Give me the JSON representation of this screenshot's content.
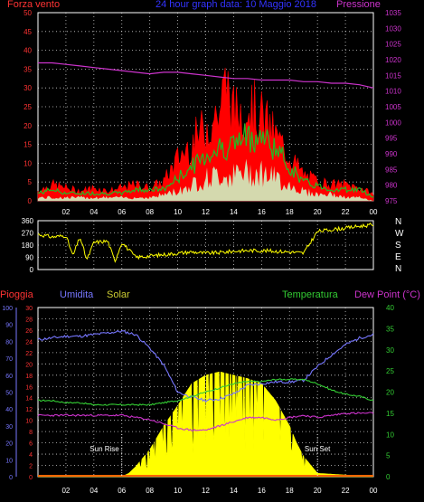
{
  "header": {
    "left_label": "Forza vento",
    "title": "24 hour graph data: 10 Maggio 2018",
    "right_label": "Pressione"
  },
  "compass_labels": [
    "N",
    "W",
    "S",
    "E",
    "N"
  ],
  "bottom_header": {
    "pioggia": "Pioggia",
    "umidita": "Umidita",
    "solar": "Solar",
    "temperatura": "Temperatura",
    "dew_point": "Dew Point (°C)"
  },
  "annotations": {
    "sunrise": "Sun Rise",
    "sunset": "Sun Set"
  },
  "colors": {
    "wind_gust": "#ff0000",
    "wind_avg": "#22bb22",
    "wind_min": "#ccffcc",
    "pressure": "#cc33cc",
    "direction": "#ffff00",
    "humidity": "#7777ff",
    "solar": "#ffff00",
    "temperature": "#33cc33",
    "dew_point": "#cc33cc",
    "rain": "#ff6600",
    "left_axis": "#ff3333",
    "pressure_axis": "#cc33cc",
    "humidity_axis": "#7777ff",
    "temp_axis": "#33cc33",
    "compass": "#ffffff",
    "grid": "#ffffff"
  },
  "chart_data": [
    {
      "type": "line",
      "name": "wind-pressure",
      "x_ticks": [
        "02",
        "04",
        "06",
        "08",
        "10",
        "12",
        "14",
        "16",
        "18",
        "20",
        "22",
        "00"
      ],
      "x_range": [
        0,
        24
      ],
      "y_left_ticks": [
        0,
        5,
        10,
        15,
        20,
        25,
        30,
        35,
        40,
        45,
        50
      ],
      "y_left_range": [
        0,
        50
      ],
      "y_right_ticks": [
        975,
        980,
        985,
        990,
        995,
        1000,
        1005,
        1010,
        1015,
        1020,
        1025,
        1030,
        1035
      ],
      "y_right_range": [
        975,
        1035
      ],
      "series": [
        {
          "key": "pressure",
          "axis": "right",
          "x": [
            0,
            1,
            2,
            3,
            4,
            5,
            6,
            7,
            8,
            9,
            10,
            11,
            12,
            13,
            14,
            15,
            16,
            17,
            18,
            19,
            20,
            21,
            22,
            23,
            24
          ],
          "y": [
            1019,
            1019,
            1018.5,
            1018,
            1017.5,
            1017,
            1016.5,
            1016,
            1015.5,
            1016,
            1016,
            1015.5,
            1015,
            1014.5,
            1014,
            1014,
            1013.5,
            1013.5,
            1013.5,
            1013,
            1013,
            1012.5,
            1012.5,
            1012,
            1011
          ]
        },
        {
          "key": "wind_gust",
          "axis": "left",
          "x": [
            0,
            1,
            2,
            3,
            4,
            5,
            6,
            7,
            8,
            9,
            10,
            11,
            12,
            13,
            13.5,
            14,
            15,
            16,
            17,
            18,
            19,
            20,
            21,
            22,
            23,
            24
          ],
          "y": [
            3,
            5,
            4,
            3,
            4,
            3,
            4,
            5,
            4,
            6,
            13,
            18,
            23,
            28,
            37,
            27,
            30,
            26,
            20,
            14,
            8,
            6,
            5,
            5,
            4,
            2
          ]
        },
        {
          "key": "wind_avg",
          "axis": "left",
          "x": [
            0,
            1,
            2,
            3,
            4,
            5,
            6,
            7,
            8,
            9,
            10,
            11,
            12,
            13,
            14,
            15,
            16,
            17,
            18,
            19,
            20,
            21,
            22,
            23,
            24
          ],
          "y": [
            2,
            3,
            2,
            2,
            2,
            2,
            2,
            3,
            3,
            3,
            6,
            9,
            12,
            14,
            15,
            17,
            17,
            14,
            9,
            5,
            4,
            3,
            3,
            3,
            1
          ]
        },
        {
          "key": "wind_min",
          "axis": "left",
          "x": [
            0,
            1,
            2,
            3,
            4,
            5,
            6,
            7,
            8,
            9,
            10,
            11,
            12,
            13,
            14,
            15,
            16,
            17,
            18,
            19,
            20,
            21,
            22,
            23,
            24
          ],
          "y": [
            1,
            1,
            1,
            1,
            1,
            1,
            1,
            1,
            1,
            2,
            3,
            5,
            7,
            8,
            8,
            9,
            9,
            7,
            5,
            3,
            2,
            2,
            1,
            1,
            0
          ]
        }
      ]
    },
    {
      "type": "line",
      "name": "wind-direction",
      "x_range": [
        0,
        24
      ],
      "y_ticks": [
        0,
        90,
        180,
        270,
        360
      ],
      "y_range": [
        0,
        360
      ],
      "series": [
        {
          "key": "direction",
          "x": [
            0,
            1,
            2,
            2.5,
            3,
            3.5,
            4,
            5,
            5.5,
            6,
            7,
            8,
            9,
            10,
            11,
            12,
            13,
            14,
            15,
            16,
            17,
            18,
            19,
            20,
            21,
            22,
            23,
            24
          ],
          "y": [
            260,
            240,
            250,
            100,
            240,
            70,
            200,
            210,
            60,
            200,
            90,
            100,
            110,
            120,
            130,
            120,
            125,
            135,
            140,
            140,
            135,
            130,
            120,
            280,
            295,
            305,
            320,
            330
          ]
        }
      ]
    },
    {
      "type": "area",
      "name": "rain-humidity-solar-temp",
      "x_ticks": [
        "02",
        "04",
        "06",
        "08",
        "10",
        "12",
        "14",
        "16",
        "18",
        "20",
        "22",
        "00"
      ],
      "x_range": [
        0,
        24
      ],
      "humidity_ticks": [
        0,
        10,
        20,
        30,
        40,
        50,
        60,
        70,
        80,
        90,
        100
      ],
      "rain_ticks": [
        0,
        2,
        4,
        6,
        8,
        10,
        12,
        14,
        16,
        18,
        20,
        22,
        24,
        26,
        28,
        30
      ],
      "temp_ticks": [
        0,
        5,
        10,
        15,
        20,
        25,
        30,
        35,
        40
      ],
      "temp_range": [
        0,
        40
      ],
      "series": [
        {
          "key": "humidity",
          "axis": "humidity",
          "x": [
            0,
            1,
            2,
            3,
            4,
            5,
            6,
            7,
            8,
            9,
            10,
            11,
            12,
            13,
            14,
            15,
            16,
            17,
            18,
            19,
            20,
            21,
            22,
            23,
            24
          ],
          "y": [
            81,
            82,
            83,
            83,
            84,
            85,
            86,
            84,
            76,
            66,
            50,
            47,
            45,
            46,
            49,
            54,
            55,
            56,
            56,
            57,
            65,
            72,
            78,
            82,
            84
          ]
        },
        {
          "key": "temperature",
          "axis": "temp",
          "x": [
            0,
            1,
            2,
            3,
            4,
            5,
            6,
            7,
            8,
            9,
            10,
            11,
            12,
            13,
            14,
            15,
            16,
            17,
            18,
            19,
            20,
            21,
            22,
            23,
            24
          ],
          "y": [
            18,
            18,
            17.5,
            17.5,
            17,
            17,
            17,
            17,
            17,
            17.5,
            18,
            19,
            20,
            21,
            22,
            22.5,
            22.5,
            23,
            23,
            23,
            22,
            20.5,
            19.5,
            19,
            18
          ]
        },
        {
          "key": "dew_point",
          "axis": "temp",
          "x": [
            0,
            1,
            2,
            3,
            4,
            5,
            6,
            7,
            8,
            9,
            10,
            11,
            12,
            13,
            14,
            15,
            16,
            17,
            18,
            19,
            20,
            21,
            22,
            23,
            24
          ],
          "y": [
            14.5,
            14.5,
            14.5,
            14.5,
            14.5,
            14.5,
            14.5,
            14,
            13.5,
            12.5,
            11.5,
            11,
            11,
            12,
            13,
            14,
            14,
            13.5,
            14,
            14.5,
            14,
            14.5,
            15,
            15,
            15
          ]
        },
        {
          "key": "solar",
          "axis": "humidity",
          "x": [
            0,
            5,
            6,
            6.5,
            7,
            8,
            9,
            10,
            11,
            12,
            13,
            14,
            15,
            16,
            17,
            18,
            18.5,
            19,
            20,
            24
          ],
          "y": [
            0,
            0,
            0,
            2,
            6,
            16,
            30,
            42,
            55,
            60,
            62,
            60,
            58,
            55,
            45,
            30,
            20,
            12,
            2,
            0
          ]
        },
        {
          "key": "rain",
          "axis": "rain",
          "x": [
            0,
            24
          ],
          "y": [
            0,
            0
          ]
        }
      ]
    }
  ]
}
